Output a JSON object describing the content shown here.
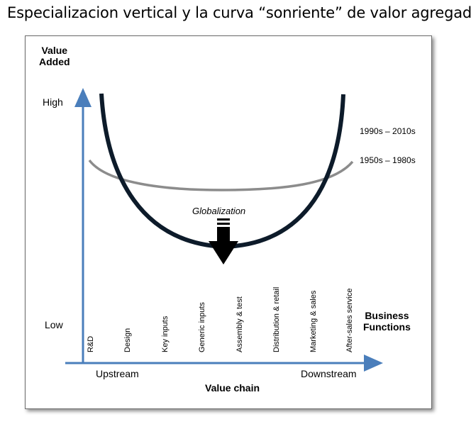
{
  "title": "Especializacion vertical y la curva “sonriente” de valor agregado",
  "y_axis": {
    "label_line1": "Value",
    "label_line2": "Added",
    "high": "High",
    "low": "Low"
  },
  "x_axis": {
    "label": "Value chain",
    "upstream": "Upstream",
    "downstream": "Downstream",
    "functions_title_line1": "Business",
    "functions_title_line2": "Functions"
  },
  "curves": {
    "new_era": "1990s – 2010s",
    "old_era": "1950s – 1980s"
  },
  "arrow_label": "Globalization",
  "functions": [
    "R&D",
    "Design",
    "Key inputs",
    "Generic inputs",
    "Assembly & test",
    "Distribution & retail",
    "Marketing & sales",
    "After-sales service"
  ],
  "colors": {
    "axis": "#4a7ebb",
    "new_curve": "#0d1b2a",
    "old_curve": "#8c8c8c",
    "arrow": "#000000"
  }
}
